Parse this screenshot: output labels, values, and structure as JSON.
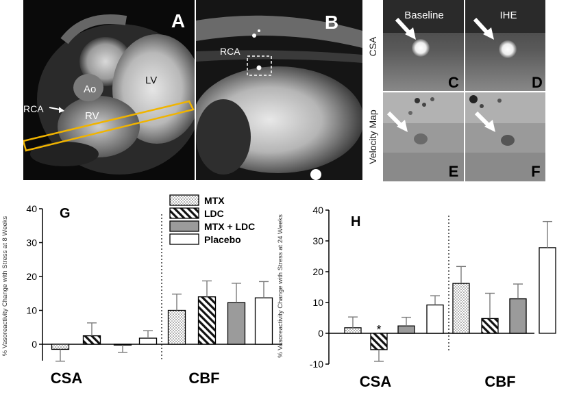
{
  "panels": {
    "a": {
      "letter": "A",
      "labels": {
        "lv": "LV",
        "ao": "Ao",
        "rca": "RCA",
        "rv": "RV"
      }
    },
    "b": {
      "letter": "B",
      "labels": {
        "rca": "RCA"
      }
    },
    "c": {
      "letter": "C",
      "title": "Baseline"
    },
    "d": {
      "letter": "D",
      "title": "IHE"
    },
    "e": {
      "letter": "E"
    },
    "f": {
      "letter": "F"
    },
    "row_labels": {
      "csa": "CSA",
      "velocity": "Velocity Map"
    }
  },
  "colors": {
    "frame": "#f0b400",
    "arrow": "#ffffff"
  },
  "chart_data": [
    {
      "type": "bar",
      "panel_letter": "G",
      "ylabel": "% Vasoreactivity Change with Stress at 8 Weeks",
      "ylim": [
        -5,
        40
      ],
      "yticks": [
        "-10",
        "0",
        "10",
        "20",
        "30",
        "40"
      ],
      "groups": [
        "CSA",
        "CBF"
      ],
      "series": [
        {
          "name": "MTX",
          "pattern": "dots",
          "values": [
            -1.5,
            10.0
          ],
          "errors": [
            3.5,
            4.8
          ]
        },
        {
          "name": "LDC",
          "pattern": "hatch",
          "values": [
            2.5,
            14.0
          ],
          "errors": [
            3.8,
            4.7
          ]
        },
        {
          "name": "MTX + LDC",
          "pattern": "gray",
          "values": [
            -0.2,
            12.3
          ],
          "errors": [
            2.2,
            5.7
          ]
        },
        {
          "name": "Placebo",
          "pattern": "white",
          "values": [
            1.8,
            13.7
          ],
          "errors": [
            2.2,
            4.8
          ]
        }
      ]
    },
    {
      "type": "bar",
      "panel_letter": "H",
      "ylabel": "% Vasoreactivity Change with Stress at 24 Weeks",
      "ylim": [
        -10,
        40
      ],
      "yticks": [
        "-10",
        "0",
        "10",
        "20",
        "30",
        "40"
      ],
      "groups": [
        "CSA",
        "CBF"
      ],
      "annotation": "*",
      "series": [
        {
          "name": "MTX",
          "pattern": "dots",
          "values": [
            1.8,
            16.2
          ],
          "errors": [
            3.5,
            5.5
          ]
        },
        {
          "name": "LDC",
          "pattern": "hatch",
          "values": [
            -5.3,
            4.8
          ],
          "errors": [
            3.8,
            8.2
          ]
        },
        {
          "name": "MTX + LDC",
          "pattern": "gray",
          "values": [
            2.4,
            11.2
          ],
          "errors": [
            2.8,
            4.8
          ]
        },
        {
          "name": "Placebo",
          "pattern": "white",
          "values": [
            9.2,
            27.8
          ],
          "errors": [
            3.0,
            8.5
          ]
        }
      ]
    }
  ]
}
